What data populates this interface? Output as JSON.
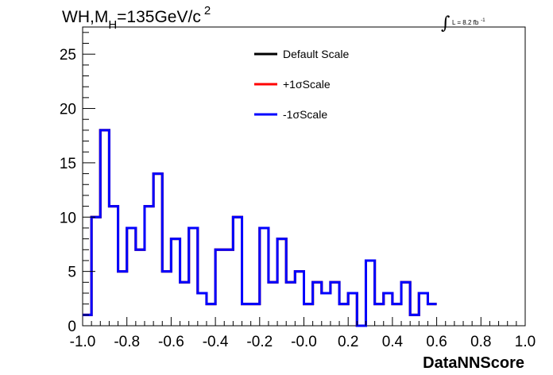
{
  "chart_data": {
    "type": "histogram-step",
    "title": {
      "prefix": "WH,M",
      "subscript": "H",
      "value": "=135GeV/c",
      "superscript": "2"
    },
    "lumi_label": {
      "integral": "∫",
      "text": "L = 8.2 fb",
      "superscript": "-1"
    },
    "xlabel": "DataNNScore",
    "ylabel": "",
    "xlim": [
      -1.0,
      1.0
    ],
    "ylim": [
      0,
      27.5
    ],
    "x_ticks": [
      -1.0,
      -0.8,
      -0.6,
      -0.4,
      -0.2,
      0.0,
      0.2,
      0.4,
      0.6,
      0.8,
      1.0
    ],
    "x_tick_labels": [
      "-1.0",
      "-0.8",
      "-0.6",
      "-0.4",
      "-0.2",
      "-0.0",
      "0.2",
      "0.4",
      "0.6",
      "0.8",
      "1.0"
    ],
    "y_ticks": [
      0,
      5,
      10,
      15,
      20,
      25
    ],
    "y_tick_labels": [
      "0",
      "5",
      "10",
      "15",
      "20",
      "25"
    ],
    "grid": false,
    "legend_placement": "top-center",
    "bin_edges_start": -1.0,
    "bin_width": 0.04,
    "series": [
      {
        "name": "Default Scale",
        "color": "#000000",
        "values": [
          1,
          10,
          18,
          11,
          5,
          9,
          7,
          11,
          14,
          5,
          8,
          4,
          9,
          3,
          2,
          7,
          7,
          10,
          2,
          2,
          9,
          4,
          8,
          4,
          5,
          2,
          4,
          3,
          4,
          2,
          3,
          0,
          6,
          2,
          3,
          2,
          4,
          1,
          3,
          2
        ]
      },
      {
        "name": "+1σScale",
        "color": "#ff0000",
        "values": [
          1,
          10,
          18,
          11,
          5,
          9,
          7,
          11,
          14,
          5,
          8,
          4,
          9,
          3,
          2,
          7,
          7,
          10,
          2,
          2,
          9,
          4,
          8,
          4,
          5,
          2,
          4,
          3,
          4,
          2,
          3,
          0,
          6,
          2,
          3,
          2,
          4,
          1,
          3,
          2
        ]
      },
      {
        "name": "-1σScale",
        "color": "#0000ff",
        "values": [
          1,
          10,
          18,
          11,
          5,
          9,
          7,
          11,
          14,
          5,
          8,
          4,
          9,
          3,
          2,
          7,
          7,
          10,
          2,
          2,
          9,
          4,
          8,
          4,
          5,
          2,
          4,
          3,
          4,
          2,
          3,
          0,
          6,
          2,
          3,
          2,
          4,
          1,
          3,
          2
        ]
      }
    ]
  }
}
